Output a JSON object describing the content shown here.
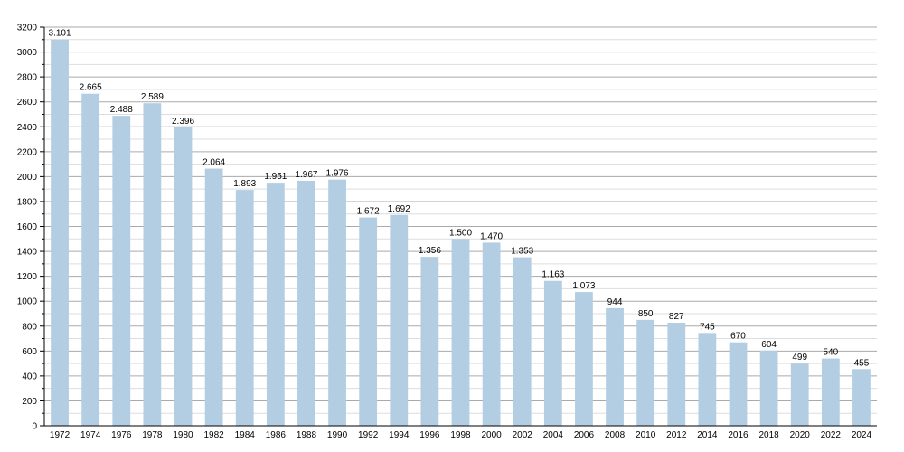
{
  "chart_data": {
    "type": "bar",
    "categories": [
      "1972",
      "1974",
      "1976",
      "1978",
      "1980",
      "1982",
      "1984",
      "1986",
      "1988",
      "1990",
      "1992",
      "1994",
      "1996",
      "1998",
      "2000",
      "2002",
      "2004",
      "2006",
      "2008",
      "2010",
      "2012",
      "2014",
      "2016",
      "2018",
      "2020",
      "2022",
      "2024"
    ],
    "values": [
      3101,
      2665,
      2488,
      2589,
      2396,
      2064,
      1893,
      1951,
      1967,
      1976,
      1672,
      1692,
      1356,
      1500,
      1470,
      1353,
      1163,
      1073,
      944,
      850,
      827,
      745,
      670,
      604,
      499,
      540,
      455
    ],
    "value_labels": [
      "3.101",
      "2.665",
      "2.488",
      "2.589",
      "2.396",
      "2.064",
      "1.893",
      "1.951",
      "1.967",
      "1.976",
      "1.672",
      "1.692",
      "1.356",
      "1.500",
      "1.470",
      "1.353",
      "1.163",
      "1.073",
      "944",
      "850",
      "827",
      "745",
      "670",
      "604",
      "499",
      "540",
      "455"
    ],
    "yticks": [
      0,
      200,
      400,
      600,
      800,
      1000,
      1200,
      1400,
      1600,
      1800,
      2000,
      2200,
      2400,
      2600,
      2800,
      3000,
      3200
    ],
    "ylim": [
      0,
      3200
    ],
    "grid": true,
    "colors": {
      "bar": "#b3cde3",
      "grid_major": "#aaaaaa",
      "grid_minor": "#dddddd",
      "axis": "#000000"
    }
  }
}
